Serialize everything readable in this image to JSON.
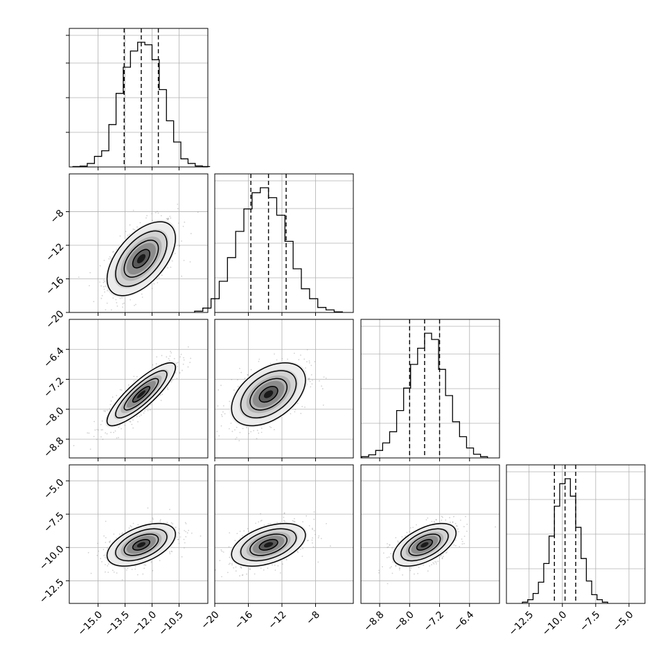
{
  "chart_data": {
    "type": "corner",
    "grid": true,
    "parameters": [
      {
        "name": "",
        "mean": -12.6,
        "sd": 0.95,
        "lim": [
          -16.6,
          -8.9
        ],
        "ticks": [
          -15.0,
          -13.5,
          -12.0,
          -10.5
        ],
        "tick_labels": [
          "−15.0",
          "−13.5",
          "−12.0",
          "−10.5"
        ],
        "quantiles": [
          -13.55,
          -12.6,
          -11.65
        ],
        "hist": [
          0.003,
          0.007,
          0.028,
          0.085,
          0.13,
          0.34,
          0.59,
          0.8,
          0.93,
          1.0,
          0.98,
          0.86,
          0.62,
          0.37,
          0.2,
          0.065,
          0.028,
          0.008,
          0.003
        ]
      },
      {
        "name": "",
        "mean": -13.6,
        "sd": 2.2,
        "lim": [
          -20.0,
          -3.5
        ],
        "ticks": [
          -20,
          -16,
          -12,
          -8
        ],
        "tick_labels": [
          "−20",
          "−16",
          "−12",
          "−8"
        ],
        "quantiles": [
          -15.7,
          -13.6,
          -11.5
        ],
        "hist": [
          0.01,
          0.035,
          0.11,
          0.25,
          0.44,
          0.65,
          0.83,
          0.96,
          1.0,
          0.92,
          0.78,
          0.57,
          0.35,
          0.19,
          0.11,
          0.04,
          0.02,
          0.005
        ]
      },
      {
        "name": "",
        "mean": -7.6,
        "sd": 0.42,
        "lim": [
          -9.3,
          -5.6
        ],
        "ticks": [
          -8.8,
          -8.0,
          -7.2,
          -6.4
        ],
        "tick_labels": [
          "−8.8",
          "−8.0",
          "−7.2",
          "−6.4"
        ],
        "quantiles": [
          -8.0,
          -7.6,
          -7.2
        ],
        "hist": [
          0.01,
          0.025,
          0.06,
          0.12,
          0.21,
          0.38,
          0.56,
          0.75,
          0.88,
          1.0,
          0.95,
          0.71,
          0.5,
          0.29,
          0.17,
          0.08,
          0.03,
          0.01
        ]
      },
      {
        "name": "",
        "mean": -9.8,
        "sd": 0.8,
        "lim": [
          -14.2,
          -3.8
        ],
        "ticks": [
          -12.5,
          -10.0,
          -7.5,
          -5.0
        ],
        "tick_labels": [
          "−12.5",
          "−10.0",
          "−7.5",
          "−5.0"
        ],
        "quantiles": [
          -10.6,
          -9.8,
          -9.0
        ],
        "hist": [
          0.01,
          0.03,
          0.08,
          0.17,
          0.32,
          0.54,
          0.78,
          0.96,
          1.0,
          0.86,
          0.61,
          0.36,
          0.18,
          0.07,
          0.03,
          0.01
        ]
      }
    ],
    "correlations": {
      "1-0": 0.55,
      "2-0": 0.85,
      "2-1": 0.45,
      "3-0": 0.5,
      "3-1": 0.45,
      "3-2": 0.55
    },
    "contour_levels": [
      0.5,
      1.0,
      1.5,
      2.0
    ]
  }
}
